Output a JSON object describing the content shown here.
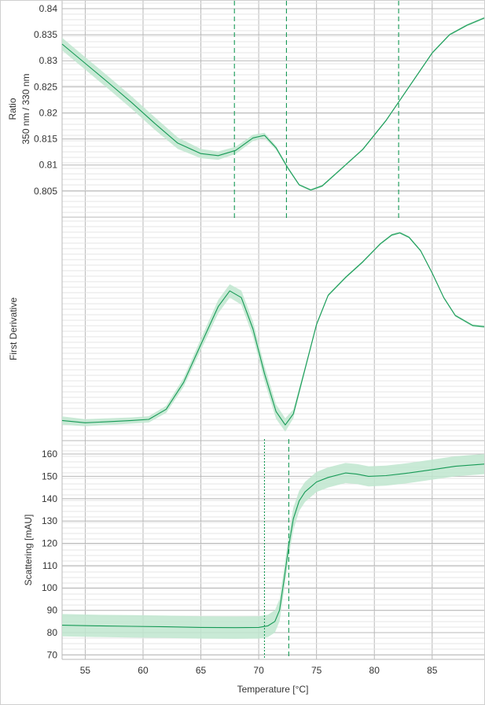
{
  "colors": {
    "line": "#169a56",
    "band": "#bfe6cf",
    "grid_major": "#b8b8b8",
    "grid_minor": "#e4e4e4",
    "text": "#333333"
  },
  "chart_data": [
    {
      "type": "line",
      "panel": "ratio",
      "ylabel": [
        "Ratio",
        "350 nm / 330 nm"
      ],
      "ylim": [
        0.8,
        0.8415
      ],
      "y_ticks": [
        0.805,
        0.81,
        0.815,
        0.82,
        0.825,
        0.83,
        0.835,
        0.84
      ],
      "y_tick_labels": [
        "0.805",
        "0.81",
        "0.815",
        "0.82",
        "0.825",
        "0.83",
        "0.835",
        "0.84"
      ],
      "grid": true,
      "vlines": [
        {
          "x": 67.9,
          "style": "dashed"
        },
        {
          "x": 72.4,
          "style": "dashed"
        },
        {
          "x": 82.1,
          "style": "dashed"
        }
      ],
      "series": [
        {
          "x": [
            53,
            55,
            57,
            59,
            61,
            63,
            65,
            66.5,
            68,
            69.5,
            70.5,
            71.5,
            72.5,
            73.5,
            74.5,
            75.5,
            77,
            79,
            81,
            83,
            85,
            86.5,
            88,
            89.5
          ],
          "y": [
            0.8332,
            0.8295,
            0.8258,
            0.822,
            0.818,
            0.8142,
            0.8122,
            0.8118,
            0.8128,
            0.8152,
            0.8157,
            0.8133,
            0.8095,
            0.8062,
            0.8052,
            0.806,
            0.809,
            0.813,
            0.8185,
            0.825,
            0.8315,
            0.835,
            0.8368,
            0.8382
          ],
          "band": [
            0.0012,
            0.0012,
            0.0012,
            0.0012,
            0.0012,
            0.0011,
            0.0009,
            0.0008,
            0.0007,
            0.0006,
            0.0005,
            0.0004,
            0.0003,
            0.0002,
            0.0002,
            0.0002,
            0.0002,
            0.0002,
            0.0002,
            0.0002,
            0.0002,
            0.0002,
            0.0002,
            0.0002
          ]
        }
      ]
    },
    {
      "type": "line",
      "panel": "first-derivative",
      "ylabel": [
        "First Derivative"
      ],
      "ylim": [
        0,
        1
      ],
      "y_ticks": [],
      "grid": true,
      "vlines": [],
      "series": [
        {
          "x": [
            53,
            55,
            57,
            59,
            60.5,
            62,
            63.5,
            65,
            66.5,
            67.5,
            68.5,
            69.5,
            70.5,
            71.5,
            72.3,
            73,
            74,
            75,
            76,
            77.5,
            79,
            80.5,
            81.5,
            82.2,
            83,
            84,
            85,
            86,
            87,
            88.5,
            89.5
          ],
          "y": [
            0.09,
            0.08,
            0.085,
            0.09,
            0.095,
            0.14,
            0.26,
            0.43,
            0.6,
            0.67,
            0.64,
            0.5,
            0.3,
            0.13,
            0.07,
            0.12,
            0.32,
            0.52,
            0.65,
            0.73,
            0.8,
            0.88,
            0.92,
            0.93,
            0.91,
            0.85,
            0.75,
            0.64,
            0.56,
            0.515,
            0.51
          ],
          "band": [
            0.018,
            0.016,
            0.015,
            0.014,
            0.014,
            0.016,
            0.02,
            0.025,
            0.03,
            0.03,
            0.032,
            0.034,
            0.034,
            0.032,
            0.03,
            0.02,
            0.012,
            0.008,
            0.006,
            0.005,
            0.005,
            0.005,
            0.005,
            0.005,
            0.005,
            0.005,
            0.005,
            0.005,
            0.005,
            0.005,
            0.005
          ]
        }
      ]
    },
    {
      "type": "line",
      "panel": "scattering",
      "ylabel": [
        "Scattering [mAU]"
      ],
      "ylim": [
        68,
        166
      ],
      "y_ticks": [
        70,
        80,
        90,
        100,
        110,
        120,
        130,
        140,
        150,
        160
      ],
      "y_tick_labels": [
        "70",
        "80",
        "90",
        "100",
        "110",
        "120",
        "130",
        "140",
        "150",
        "160"
      ],
      "grid": true,
      "vlines": [
        {
          "x": 70.5,
          "style": "dotted"
        },
        {
          "x": 72.6,
          "style": "dashed"
        }
      ],
      "series": [
        {
          "x": [
            53,
            56,
            59,
            62,
            65,
            68,
            70,
            70.8,
            71.4,
            71.8,
            72.2,
            72.6,
            73,
            73.5,
            74,
            75,
            76,
            77.5,
            78.5,
            79.5,
            81,
            83,
            85,
            87,
            89.5
          ],
          "y": [
            83.3,
            83,
            82.8,
            82.6,
            82.3,
            82.2,
            82.3,
            83,
            85,
            90,
            104,
            119,
            131,
            139,
            143,
            147.5,
            149.5,
            151.5,
            151,
            150,
            150.3,
            151.5,
            153,
            154.5,
            155.5
          ],
          "band": [
            5,
            5,
            5,
            5,
            5,
            5,
            5,
            5,
            5,
            5,
            5,
            5,
            5,
            4.5,
            4.5,
            4.5,
            4.5,
            4.5,
            4.5,
            4.5,
            4.5,
            4.5,
            4.5,
            4.5,
            4.5
          ]
        }
      ]
    }
  ],
  "x_axis": {
    "title": "Temperature [°C]",
    "xlim": [
      53,
      89.5
    ],
    "ticks": [
      55,
      60,
      65,
      70,
      75,
      80,
      85
    ],
    "tick_labels": [
      "55",
      "60",
      "65",
      "70",
      "75",
      "80",
      "85"
    ]
  }
}
